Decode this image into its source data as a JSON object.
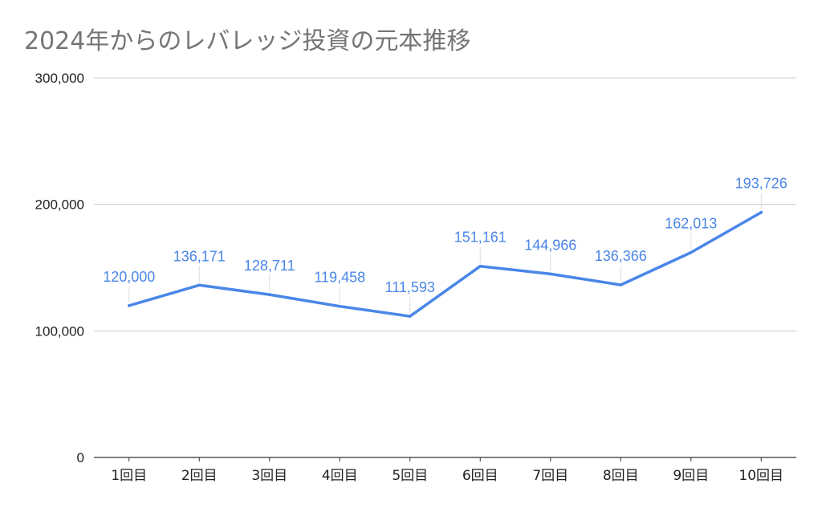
{
  "chart_data": {
    "type": "line",
    "title": "2024年からのレバレッジ投資の元本推移",
    "xlabel": "",
    "ylabel": "",
    "categories": [
      "1回目",
      "2回目",
      "3回目",
      "4回目",
      "5回目",
      "6回目",
      "7回目",
      "8回目",
      "9回目",
      "10回目"
    ],
    "series": [
      {
        "values": [
          120000,
          136171,
          128711,
          119458,
          111593,
          151161,
          144966,
          136366,
          162013,
          193726
        ]
      }
    ],
    "data_labels": [
      "120,000",
      "136,171",
      "128,711",
      "119,458",
      "111,593",
      "151,161",
      "144,966",
      "136,366",
      "162,013",
      "193,726"
    ],
    "ylim": [
      0,
      300000
    ],
    "yticks": [
      0,
      100000,
      200000,
      300000
    ],
    "ytick_labels": [
      "0",
      "100,000",
      "200,000",
      "300,000"
    ],
    "grid": true,
    "legend": "none",
    "colors": {
      "line": "#4a86e8",
      "grid": "#cccccc",
      "axis": "#333333",
      "title": "#757575",
      "label": "#4a86e8"
    }
  }
}
